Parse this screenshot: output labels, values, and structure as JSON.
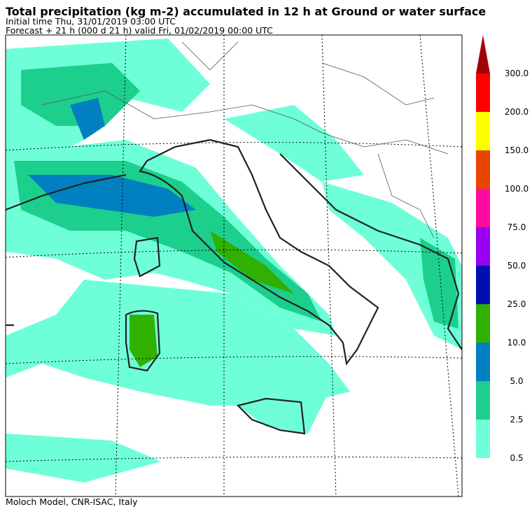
{
  "header": {
    "title": "Total precipitation (kg m-2) accumulated in  12 h at Ground or water surface",
    "line1": "Initial time  Thu, 31/01/2019  03:00 UTC",
    "line2": "Forecast  +  21 h  (000 d 21 h)  valid Fri, 01/02/2019 00:00 UTC"
  },
  "legend": {
    "labels": [
      "0.5",
      "2.5",
      "5.0",
      "10.0",
      "25.0",
      "50.0",
      "75.0",
      "100.0",
      "150.0",
      "200.0",
      "300.0"
    ],
    "colors": [
      "#6fffd8",
      "#1dcf8c",
      "#0080c0",
      "#30b000",
      "#0010b0",
      "#9900f0",
      "#ff0aa0",
      "#e84500",
      "#ffff00",
      "#ff0000",
      "#a00008"
    ]
  },
  "footer": "Moloch Model, CNR-ISAC, Italy"
}
